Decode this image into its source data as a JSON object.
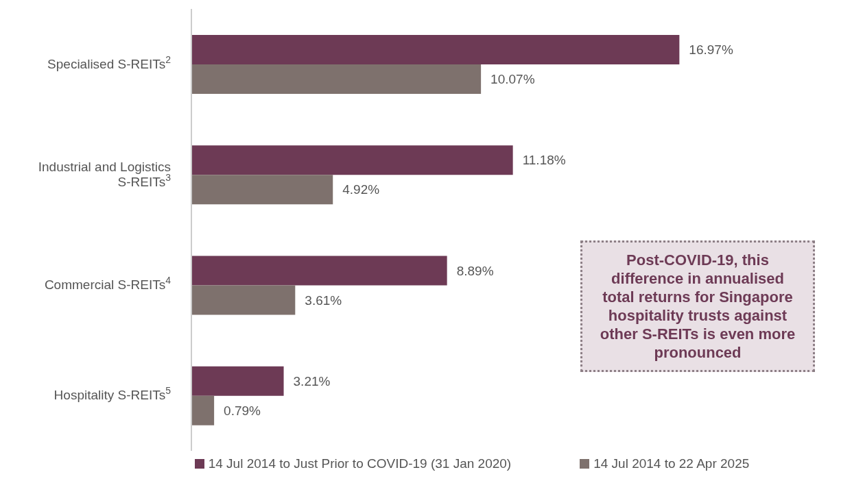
{
  "chart_data": {
    "type": "bar",
    "orientation": "horizontal",
    "categories": [
      "Specialised S-REITs$^{2}$",
      "Industrial and Logistics S-REITs$^{3}$",
      "Commercial S-REITs$^{4}$",
      "Hospitality S-REITs$^{5}$"
    ],
    "series": [
      {
        "name": "14 Jul 2014 to Just Prior to COVID-19 (31 Jan 2020)",
        "color": "#6d3a55",
        "values": [
          16.97,
          11.18,
          8.89,
          3.21
        ],
        "value_labels": [
          "16.97%",
          "11.18%",
          "8.89%",
          "3.21%"
        ]
      },
      {
        "name": "14 Jul 2014 to 22 Apr 2025",
        "color": "#7e716d",
        "values": [
          10.07,
          4.92,
          3.61,
          0.79
        ],
        "value_labels": [
          "10.07%",
          "4.92%",
          "3.61%",
          "0.79%"
        ]
      }
    ],
    "legend": "bottom",
    "annotations": [
      "Post-COVID-19, this difference in annualised total returns for Singapore hospitality trusts against other S-REITs is even more pronounced"
    ]
  }
}
